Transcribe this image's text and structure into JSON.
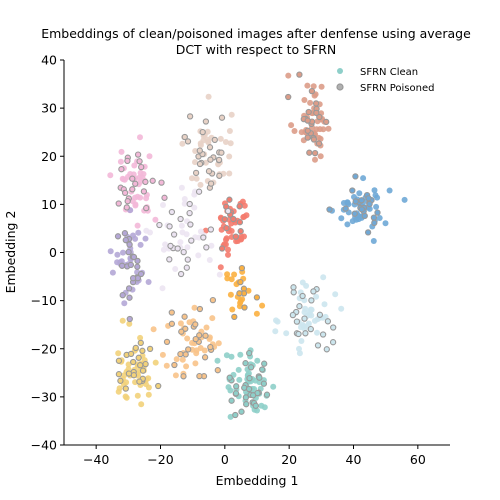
{
  "chart_data": {
    "type": "scatter",
    "title_lines": [
      "Embeddings of clean/poisoned images after denfense using average",
      "DCT with respect to SFRN"
    ],
    "xlabel": "Embedding 1",
    "ylabel": "Embedding 2",
    "xlim": [
      -50,
      70
    ],
    "ylim": [
      -40,
      40
    ],
    "xticks": [
      -40,
      -20,
      0,
      20,
      40,
      60
    ],
    "yticks": [
      -40,
      -30,
      -20,
      -10,
      0,
      10,
      20,
      30,
      40
    ],
    "grid": false,
    "legend_position": "top-right",
    "legend": [
      {
        "label": "SFRN Clean",
        "marker": "filled-circle",
        "color": "#8ecfc9"
      },
      {
        "label": "SFRN Poisoned",
        "marker": "hollow-circle",
        "color": "#999999"
      }
    ],
    "poisoned_edge_color": "#999999",
    "clusters": [
      {
        "color": "#dc9c88",
        "center": [
          27,
          28
        ],
        "spread": [
          3.0,
          4.5
        ],
        "clean_count": 40,
        "poisoned_count": 22
      },
      {
        "color": "#e8d2c6",
        "center": [
          -5,
          21
        ],
        "spread": [
          3.5,
          4.5
        ],
        "clean_count": 35,
        "poisoned_count": 25
      },
      {
        "color": "#f3b8d8",
        "center": [
          -28,
          15
        ],
        "spread": [
          3.5,
          4.5
        ],
        "clean_count": 40,
        "poisoned_count": 22
      },
      {
        "color": "#6fa8d6",
        "center": [
          43,
          9
        ],
        "spread": [
          4.0,
          2.5
        ],
        "clean_count": 45,
        "poisoned_count": 22
      },
      {
        "color": "#f47b6e",
        "center": [
          2,
          6
        ],
        "spread": [
          2.8,
          3.5
        ],
        "clean_count": 40,
        "poisoned_count": 12
      },
      {
        "color": "#b4a7d6",
        "center": [
          -29,
          -2
        ],
        "spread": [
          3.0,
          4.0
        ],
        "clean_count": 30,
        "poisoned_count": 22
      },
      {
        "color": "#ece4f2",
        "center": [
          -12,
          4
        ],
        "spread": [
          5.0,
          5.0
        ],
        "clean_count": 30,
        "poisoned_count": 22
      },
      {
        "color": "#fbb040",
        "center": [
          5,
          -8
        ],
        "spread": [
          3.0,
          3.0
        ],
        "clean_count": 18,
        "poisoned_count": 8
      },
      {
        "color": "#cce6ee",
        "center": [
          26,
          -13
        ],
        "spread": [
          4.0,
          4.0
        ],
        "clean_count": 40,
        "poisoned_count": 22
      },
      {
        "color": "#f8c38a",
        "center": [
          -10,
          -19
        ],
        "spread": [
          5.0,
          4.0
        ],
        "clean_count": 35,
        "poisoned_count": 25
      },
      {
        "color": "#f2d27a",
        "center": [
          -28,
          -24
        ],
        "spread": [
          3.5,
          3.5
        ],
        "clean_count": 45,
        "poisoned_count": 22
      },
      {
        "color": "#8ecfc9",
        "center": [
          8,
          -28
        ],
        "spread": [
          4.0,
          3.5
        ],
        "clean_count": 50,
        "poisoned_count": 30
      }
    ]
  }
}
